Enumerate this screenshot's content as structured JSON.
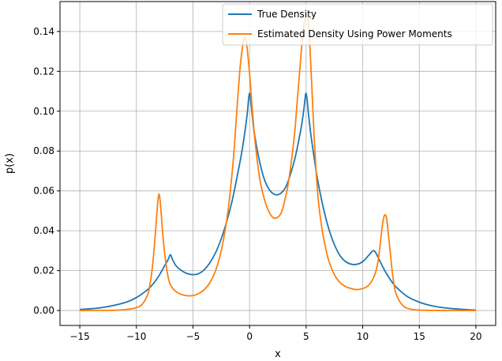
{
  "chart_data": {
    "type": "line",
    "title": "",
    "xlabel": "x",
    "ylabel": "p(x)",
    "xlim": [
      -16.75,
      21.75
    ],
    "ylim": [
      -0.0075,
      0.155
    ],
    "xticks": [
      -15,
      -10,
      -5,
      0,
      5,
      10,
      15,
      20
    ],
    "xtick_labels": [
      "−15",
      "−10",
      "−5",
      "0",
      "5",
      "10",
      "15",
      "20"
    ],
    "yticks": [
      0.0,
      0.02,
      0.04,
      0.06,
      0.08,
      0.1,
      0.12,
      0.14
    ],
    "ytick_labels": [
      "0.00",
      "0.02",
      "0.04",
      "0.06",
      "0.08",
      "0.10",
      "0.12",
      "0.14"
    ],
    "grid": true,
    "legend_position": "top-right",
    "series": [
      {
        "name": "True Density",
        "color": "#1f77b4",
        "x": [
          -15,
          -13,
          -11,
          -10,
          -9,
          -8.5,
          -8,
          -7.5,
          -7.2,
          -7,
          -6.8,
          -6.5,
          -6,
          -5.5,
          -5,
          -4.5,
          -4,
          -3.5,
          -3,
          -2.5,
          -2,
          -1.5,
          -1,
          -0.7,
          -0.4,
          -0.2,
          0,
          0.2,
          0.4,
          0.7,
          1,
          1.3,
          1.6,
          2,
          2.4,
          2.8,
          3.2,
          3.6,
          4,
          4.3,
          4.6,
          4.8,
          5,
          5.2,
          5.4,
          5.7,
          6,
          6.5,
          7,
          7.5,
          8,
          8.5,
          9,
          9.5,
          10,
          10.5,
          10.8,
          11,
          11.2,
          11.5,
          12,
          12.5,
          13,
          14,
          15,
          16,
          17,
          18,
          19,
          20
        ],
        "y": [
          0.0005,
          0.0015,
          0.004,
          0.0065,
          0.0105,
          0.0135,
          0.0175,
          0.0225,
          0.0255,
          0.028,
          0.0255,
          0.0225,
          0.02,
          0.0185,
          0.018,
          0.0185,
          0.0205,
          0.024,
          0.029,
          0.036,
          0.045,
          0.056,
          0.07,
          0.079,
          0.09,
          0.099,
          0.109,
          0.1,
          0.09,
          0.08,
          0.072,
          0.066,
          0.062,
          0.059,
          0.058,
          0.059,
          0.062,
          0.068,
          0.076,
          0.084,
          0.093,
          0.101,
          0.109,
          0.099,
          0.089,
          0.077,
          0.066,
          0.052,
          0.041,
          0.033,
          0.0275,
          0.0245,
          0.0232,
          0.0232,
          0.0245,
          0.0275,
          0.0295,
          0.03,
          0.0285,
          0.025,
          0.0195,
          0.015,
          0.0115,
          0.0068,
          0.0042,
          0.0025,
          0.0015,
          0.0009,
          0.0005,
          0.0002
        ]
      },
      {
        "name": "Estimated Density Using Power Moments",
        "color": "#ff7f0e",
        "x": [
          -15,
          -12,
          -10.5,
          -10,
          -9.5,
          -9,
          -8.8,
          -8.6,
          -8.4,
          -8.2,
          -8.1,
          -8,
          -7.9,
          -7.8,
          -7.6,
          -7.4,
          -7.2,
          -7,
          -6.7,
          -6.3,
          -6,
          -5.5,
          -5,
          -4.5,
          -4,
          -3.5,
          -3,
          -2.5,
          -2,
          -1.7,
          -1.4,
          -1.2,
          -1,
          -0.8,
          -0.6,
          -0.5,
          -0.4,
          -0.3,
          -0.2,
          0,
          0.2,
          0.4,
          0.6,
          0.8,
          1,
          1.3,
          1.6,
          2,
          2.4,
          2.8,
          3.1,
          3.4,
          3.7,
          4,
          4.2,
          4.4,
          4.6,
          4.8,
          5,
          5.1,
          5.2,
          5.3,
          5.5,
          5.7,
          5.9,
          6.1,
          6.4,
          6.7,
          7,
          7.5,
          8,
          8.5,
          9,
          9.5,
          10,
          10.5,
          11,
          11.3,
          11.5,
          11.7,
          11.8,
          11.9,
          12,
          12.1,
          12.2,
          12.4,
          12.6,
          12.8,
          13,
          13.5,
          14,
          15,
          17,
          20
        ],
        "y": [
          0.0,
          0.0001,
          0.0008,
          0.0015,
          0.003,
          0.008,
          0.013,
          0.021,
          0.033,
          0.048,
          0.055,
          0.0585,
          0.055,
          0.048,
          0.034,
          0.024,
          0.017,
          0.013,
          0.0105,
          0.0088,
          0.008,
          0.0074,
          0.0075,
          0.0085,
          0.0105,
          0.014,
          0.02,
          0.03,
          0.046,
          0.06,
          0.078,
          0.094,
          0.11,
          0.124,
          0.133,
          0.136,
          0.137,
          0.135,
          0.131,
          0.119,
          0.104,
          0.09,
          0.079,
          0.07,
          0.063,
          0.056,
          0.051,
          0.047,
          0.0465,
          0.049,
          0.055,
          0.063,
          0.075,
          0.09,
          0.104,
          0.118,
          0.132,
          0.143,
          0.148,
          0.148,
          0.145,
          0.136,
          0.113,
          0.088,
          0.068,
          0.054,
          0.041,
          0.032,
          0.025,
          0.018,
          0.014,
          0.012,
          0.011,
          0.0105,
          0.011,
          0.0125,
          0.017,
          0.023,
          0.031,
          0.041,
          0.045,
          0.0475,
          0.048,
          0.0465,
          0.042,
          0.031,
          0.02,
          0.012,
          0.0075,
          0.0028,
          0.001,
          0.0002,
          0.0,
          0.0
        ]
      }
    ]
  }
}
